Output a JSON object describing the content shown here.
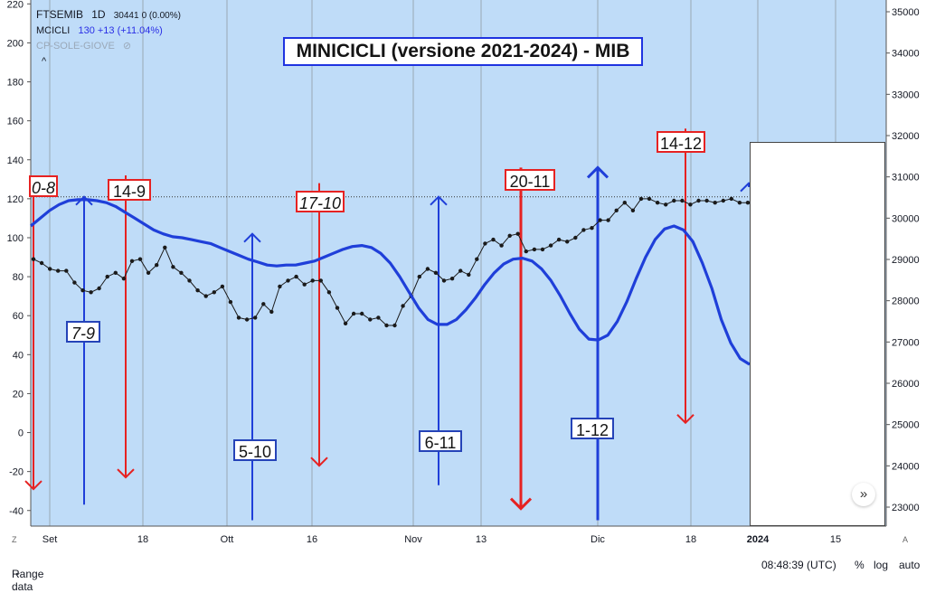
{
  "legend": {
    "symbol": "FTSEMIB",
    "interval": "1D",
    "price": "30441",
    "change": "0 (0.00%)",
    "indicator": "MCICLI",
    "indicator_value": "130",
    "indicator_change": "+13 (+11.04%)",
    "hidden_indicator": "CP-SOLE-GIOVE",
    "collapse_glyph": "^"
  },
  "title": "MINICICLI (versione 2021-2024) - MIB",
  "labels": [
    {
      "text": "0-8",
      "color": "red",
      "italic": true
    },
    {
      "text": "14-9",
      "color": "red",
      "italic": false
    },
    {
      "text": "7-9",
      "color": "blue",
      "italic": true
    },
    {
      "text": "17-10",
      "color": "red",
      "italic": true
    },
    {
      "text": "5-10",
      "color": "blue",
      "italic": false
    },
    {
      "text": "6-11",
      "color": "blue",
      "italic": false
    },
    {
      "text": "20-11",
      "color": "red",
      "italic": false
    },
    {
      "text": "1-12",
      "color": "blue",
      "italic": false
    },
    {
      "text": "14-12",
      "color": "red",
      "italic": false
    }
  ],
  "bottom": {
    "range": "Range data",
    "time": "08:48:39 (UTC)",
    "percent": "%",
    "log": "log",
    "auto": "auto",
    "corner_left": "Z",
    "corner_right": "A"
  },
  "scroll_glyph": "»",
  "colors": {
    "background": "#bfdcf8",
    "blue_cycle": "#1f3fd9",
    "red_arrow": "#e62222",
    "price_line": "#1a1a1a",
    "grid": "#9aa7b4"
  },
  "chart_data": {
    "type": "line",
    "x_ticks": [
      "Set",
      "18",
      "Ott",
      "16",
      "Nov",
      "13",
      "Dic",
      "18",
      "2024",
      "15"
    ],
    "left_axis": {
      "ticks": [
        -40,
        -20,
        0,
        20,
        40,
        60,
        80,
        100,
        120,
        140,
        160,
        180,
        200,
        220
      ],
      "ylim": [
        -48,
        222
      ]
    },
    "right_axis": {
      "ticks": [
        23000,
        24000,
        25000,
        26000,
        27000,
        28000,
        29000,
        30000,
        31000,
        32000,
        33000,
        34000,
        35000
      ]
    },
    "reference_level": 121,
    "series": [
      {
        "name": "MCICLI",
        "values": [
          106,
          110,
          114,
          117,
          119,
          119.5,
          119.5,
          119,
          118,
          116,
          113,
          110,
          107,
          104,
          102,
          100.5,
          100,
          99,
          98,
          97,
          95,
          93,
          91,
          89,
          87.5,
          86,
          85.5,
          86,
          86,
          87,
          88,
          90,
          92,
          94,
          95.5,
          96,
          95,
          92,
          87,
          80,
          72,
          64,
          58,
          55.5,
          55.5,
          58,
          63,
          69,
          76,
          82,
          86.5,
          89,
          89.5,
          88,
          84,
          78,
          70,
          61,
          53,
          48,
          47.5,
          50,
          57,
          67,
          79,
          90,
          99,
          104.5,
          106,
          104,
          98,
          87,
          74,
          58,
          46,
          38,
          35
        ]
      },
      {
        "name": "FTSEMIB",
        "values": [
          89,
          87,
          84,
          83,
          83,
          77,
          73,
          72,
          74,
          80,
          82,
          79,
          88,
          89,
          82,
          86,
          95,
          85,
          82,
          78,
          73,
          70,
          72,
          75,
          67,
          59,
          58,
          59,
          66,
          62,
          75,
          78,
          80,
          76,
          78,
          78,
          72,
          64,
          56,
          61,
          61,
          58,
          59,
          55,
          55,
          65,
          70,
          80,
          84,
          82,
          78,
          79,
          83,
          81,
          89,
          97,
          99,
          96,
          101,
          102,
          93,
          94,
          94,
          96,
          99,
          98,
          100,
          104,
          105,
          109,
          109,
          114,
          118,
          114,
          120,
          120,
          118,
          117,
          119,
          119,
          117,
          119,
          119,
          118,
          119,
          120,
          118,
          118
        ]
      }
    ],
    "arrows": [
      {
        "color": "red",
        "direction": "down",
        "from": 130,
        "to": -29
      },
      {
        "color": "blue",
        "direction": "up",
        "from": -37,
        "to": 121
      },
      {
        "color": "red",
        "direction": "down",
        "from": 132,
        "to": -23
      },
      {
        "color": "blue",
        "direction": "up",
        "from": -45,
        "to": 102
      },
      {
        "color": "red",
        "direction": "down",
        "from": 128,
        "to": -17
      },
      {
        "color": "blue",
        "direction": "up",
        "from": -27,
        "to": 121
      },
      {
        "color": "red",
        "direction": "down",
        "from": 136,
        "to": -39
      },
      {
        "color": "blue",
        "direction": "up",
        "from": -45,
        "to": 136
      },
      {
        "color": "red",
        "direction": "down",
        "from": 156,
        "to": 5
      },
      {
        "color": "blue",
        "direction": "up",
        "from": 126,
        "to": 128
      }
    ]
  }
}
